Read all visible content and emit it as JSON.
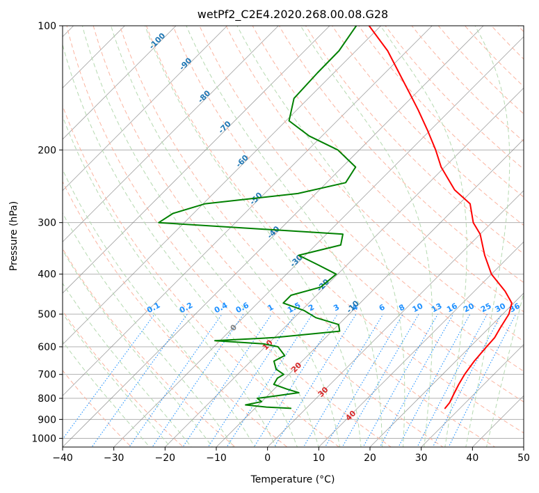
{
  "chart_data": {
    "type": "line",
    "subtype": "skew-T log-P diagram",
    "title": "wetPf2_C2E4.2020.268.00.08.G28",
    "xlabel": "Temperature (°C)",
    "ylabel": "Pressure (hPa)",
    "xlim": [
      -40,
      50
    ],
    "ylim": [
      1050,
      100
    ],
    "y_scale": "log",
    "grid": true,
    "x_ticks": [
      "−40",
      "−30",
      "−20",
      "−10",
      "0",
      "10",
      "20",
      "30",
      "40",
      "50"
    ],
    "y_ticks": [
      "100",
      "200",
      "300",
      "400",
      "500",
      "600",
      "700",
      "800",
      "900",
      "1000"
    ],
    "dry_adiabat_labels": [
      "-100",
      "-90",
      "-80",
      "-70",
      "-60",
      "-50",
      "-40",
      "-30",
      "-20",
      "-10"
    ],
    "moist_adiabat_labels": [
      "0",
      "10",
      "20",
      "30",
      "40"
    ],
    "mixing_ratio_labels": [
      "0.1",
      "0.2",
      "0.4",
      "0.6",
      "1",
      "1.5",
      "2",
      "3",
      "4",
      "6",
      "8",
      "10",
      "13",
      "16",
      "20",
      "25",
      "30",
      "36"
    ],
    "colors": {
      "temperature": "#ff0000",
      "dewpoint": "#008000",
      "isotherm": "#808080",
      "isobar": "#b0b0b0",
      "dry_adiabat": "#fbb4a0",
      "moist_adiabat": "#b5d9b0",
      "mixing_ratio": "#1e90ff",
      "dry_adiabat_label": "#1f77b4",
      "moist_adiabat_label": "#d62728",
      "zero_label": "#808080"
    },
    "series": [
      {
        "name": "Temperature",
        "points": [
          {
            "p": 846,
            "t": 27.1
          },
          {
            "p": 820,
            "t": 26.9
          },
          {
            "p": 780,
            "t": 26.0
          },
          {
            "p": 740,
            "t": 25.1
          },
          {
            "p": 700,
            "t": 24.3
          },
          {
            "p": 650,
            "t": 23.6
          },
          {
            "p": 600,
            "t": 23.2
          },
          {
            "p": 570,
            "t": 23.0
          },
          {
            "p": 540,
            "t": 22.2
          },
          {
            "p": 500,
            "t": 21.2
          },
          {
            "p": 470,
            "t": 19.6
          },
          {
            "p": 440,
            "t": 16.0
          },
          {
            "p": 400,
            "t": 10.0
          },
          {
            "p": 360,
            "t": 5.0
          },
          {
            "p": 320,
            "t": 0.0
          },
          {
            "p": 300,
            "t": -3.6
          },
          {
            "p": 270,
            "t": -7.9
          },
          {
            "p": 250,
            "t": -13.6
          },
          {
            "p": 220,
            "t": -20.7
          },
          {
            "p": 200,
            "t": -25.1
          },
          {
            "p": 180,
            "t": -30.3
          },
          {
            "p": 160,
            "t": -36.3
          },
          {
            "p": 145,
            "t": -41.5
          },
          {
            "p": 130,
            "t": -47.3
          },
          {
            "p": 115,
            "t": -53.8
          },
          {
            "p": 100,
            "t": -62.3
          }
        ]
      },
      {
        "name": "Dewpoint",
        "points": [
          {
            "p": 846,
            "t": -3.0
          },
          {
            "p": 840,
            "t": -8.0
          },
          {
            "p": 830,
            "t": -12.5
          },
          {
            "p": 815,
            "t": -10.0
          },
          {
            "p": 800,
            "t": -11.5
          },
          {
            "p": 790,
            "t": -8.5
          },
          {
            "p": 775,
            "t": -4.5
          },
          {
            "p": 760,
            "t": -7.5
          },
          {
            "p": 740,
            "t": -11.0
          },
          {
            "p": 715,
            "t": -11.5
          },
          {
            "p": 700,
            "t": -11.0
          },
          {
            "p": 680,
            "t": -13.5
          },
          {
            "p": 650,
            "t": -15.5
          },
          {
            "p": 630,
            "t": -14.5
          },
          {
            "p": 600,
            "t": -17.5
          },
          {
            "p": 590,
            "t": -21.0
          },
          {
            "p": 580,
            "t": -31.0
          },
          {
            "p": 570,
            "t": -20.0
          },
          {
            "p": 550,
            "t": -8.5
          },
          {
            "p": 530,
            "t": -10.0
          },
          {
            "p": 510,
            "t": -15.8
          },
          {
            "p": 490,
            "t": -19.5
          },
          {
            "p": 470,
            "t": -25.0
          },
          {
            "p": 450,
            "t": -25.0
          },
          {
            "p": 430,
            "t": -20.8
          },
          {
            "p": 400,
            "t": -20.3
          },
          {
            "p": 380,
            "t": -25.6
          },
          {
            "p": 360,
            "t": -31.3
          },
          {
            "p": 340,
            "t": -25.1
          },
          {
            "p": 320,
            "t": -26.8
          },
          {
            "p": 300,
            "t": -65.0
          },
          {
            "p": 285,
            "t": -64.0
          },
          {
            "p": 270,
            "t": -59.6
          },
          {
            "p": 255,
            "t": -43.5
          },
          {
            "p": 240,
            "t": -36.3
          },
          {
            "p": 220,
            "t": -37.4
          },
          {
            "p": 200,
            "t": -44.2
          },
          {
            "p": 185,
            "t": -52.5
          },
          {
            "p": 170,
            "t": -59.4
          },
          {
            "p": 150,
            "t": -62.8
          },
          {
            "p": 130,
            "t": -63.2
          },
          {
            "p": 115,
            "t": -63.3
          },
          {
            "p": 100,
            "t": -64.8
          }
        ]
      }
    ]
  }
}
